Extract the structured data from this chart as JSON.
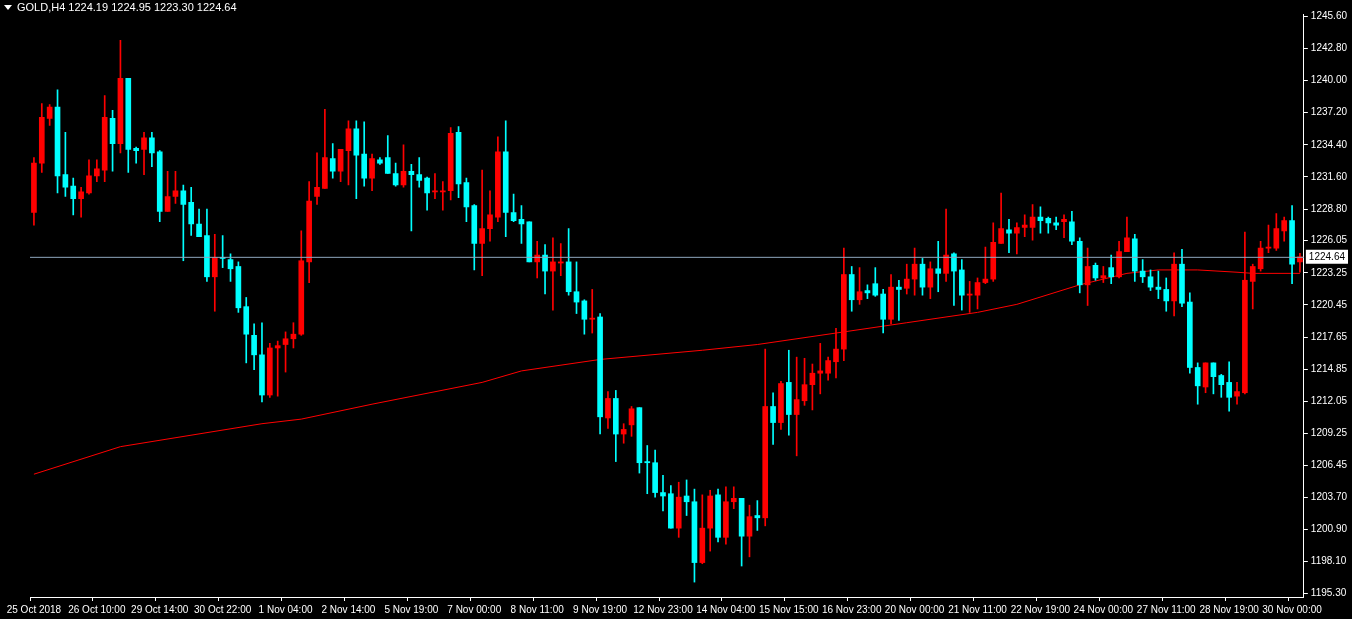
{
  "chart_data": {
    "type": "candlestick",
    "title": "GOLD,H4 1224.19 1224.95 1223.30 1224.64",
    "categories": [
      "25 Oct 2018",
      null,
      null,
      null,
      null,
      null,
      null,
      null,
      "26 Oct 10:00",
      null,
      null,
      null,
      null,
      null,
      null,
      null,
      "29 Oct 14:00",
      null,
      null,
      null,
      null,
      null,
      null,
      null,
      "30 Oct 22:00",
      null,
      null,
      null,
      null,
      null,
      null,
      null,
      "1 Nov 04:00",
      null,
      null,
      null,
      null,
      null,
      null,
      null,
      "2 Nov 14:00",
      null,
      null,
      null,
      null,
      null,
      null,
      null,
      "5 Nov 19:00",
      null,
      null,
      null,
      null,
      null,
      null,
      null,
      "7 Nov 00:00",
      null,
      null,
      null,
      null,
      null,
      null,
      null,
      "8 Nov 11:00",
      null,
      null,
      null,
      null,
      null,
      null,
      null,
      "9 Nov 19:00",
      null,
      null,
      null,
      null,
      null,
      null,
      null,
      "12 Nov 23:00",
      null,
      null,
      null,
      null,
      null,
      null,
      null,
      "14 Nov 04:00",
      null,
      null,
      null,
      null,
      null,
      null,
      null,
      "15 Nov 15:00",
      null,
      null,
      null,
      null,
      null,
      null,
      null,
      "16 Nov 23:00",
      null,
      null,
      null,
      null,
      null,
      null,
      null,
      "20 Nov 00:00",
      null,
      null,
      null,
      null,
      null,
      null,
      null,
      "21 Nov 11:00",
      null,
      null,
      null,
      null,
      null,
      null,
      null,
      "22 Nov 19:00",
      null,
      null,
      null,
      null,
      null,
      null,
      null,
      "24 Nov 00:00",
      null,
      null,
      null,
      null,
      null,
      null,
      null,
      "27 Nov 11:00",
      null,
      null,
      null,
      null,
      null,
      null,
      null,
      "28 Nov 19:00",
      null,
      null,
      null,
      null,
      null,
      null,
      null,
      "30 Nov 00:00",
      null
    ],
    "ohlc": [
      [
        1228.5,
        1233.3,
        1227.4,
        1232.8
      ],
      [
        1232.8,
        1238.0,
        1232.0,
        1236.8
      ],
      [
        1236.7,
        1237.9,
        1236.1,
        1237.7
      ],
      [
        1237.7,
        1239.2,
        1230.2,
        1231.7
      ],
      [
        1231.8,
        1235.5,
        1229.9,
        1230.7
      ],
      [
        1230.8,
        1231.5,
        1228.3,
        1229.7
      ],
      [
        1229.7,
        1230.7,
        1228.1,
        1230.3
      ],
      [
        1230.2,
        1233.1,
        1230.1,
        1231.7
      ],
      [
        1231.7,
        1233.1,
        1231.2,
        1232.3
      ],
      [
        1232.2,
        1238.7,
        1231.2,
        1236.8
      ],
      [
        1236.7,
        1237.4,
        1232.1,
        1234.5
      ],
      [
        1234.5,
        1243.5,
        1233.7,
        1240.2
      ],
      [
        1240.2,
        1240.2,
        1232.0,
        1234.0
      ],
      [
        1234.1,
        1234.2,
        1232.8,
        1233.9
      ],
      [
        1234.0,
        1235.5,
        1231.8,
        1235.0
      ],
      [
        1235.0,
        1235.5,
        1232.5,
        1233.7
      ],
      [
        1233.8,
        1233.9,
        1227.7,
        1228.6
      ],
      [
        1228.6,
        1232.1,
        1228.6,
        1229.9
      ],
      [
        1229.9,
        1232.1,
        1229.3,
        1230.4
      ],
      [
        1230.4,
        1230.9,
        1224.3,
        1229.2
      ],
      [
        1229.4,
        1230.7,
        1226.5,
        1227.5
      ],
      [
        1227.5,
        1228.8,
        1226.4,
        1226.4
      ],
      [
        1226.5,
        1228.8,
        1222.5,
        1222.9
      ],
      [
        1222.9,
        1226.6,
        1219.9,
        1224.6
      ],
      [
        1224.6,
        1226.5,
        1223.7,
        1224.5
      ],
      [
        1224.4,
        1224.9,
        1222.5,
        1223.6
      ],
      [
        1223.8,
        1224.2,
        1219.8,
        1220.2
      ],
      [
        1220.3,
        1221.1,
        1215.4,
        1217.9
      ],
      [
        1217.8,
        1218.8,
        1214.8,
        1216.1
      ],
      [
        1216.1,
        1218.9,
        1212.0,
        1212.6
      ],
      [
        1212.6,
        1217.1,
        1212.4,
        1216.7
      ],
      [
        1216.7,
        1217.3,
        1212.5,
        1216.9
      ],
      [
        1217.0,
        1218.1,
        1214.6,
        1217.5
      ],
      [
        1217.5,
        1218.9,
        1216.7,
        1217.9
      ],
      [
        1217.9,
        1226.9,
        1217.8,
        1224.3
      ],
      [
        1224.2,
        1231.2,
        1222.4,
        1229.5
      ],
      [
        1229.9,
        1233.7,
        1229.2,
        1230.7
      ],
      [
        1230.6,
        1237.5,
        1230.6,
        1233.3
      ],
      [
        1233.2,
        1234.5,
        1231.5,
        1232.1
      ],
      [
        1232.1,
        1234.0,
        1231.2,
        1234.0
      ],
      [
        1233.9,
        1236.5,
        1230.9,
        1235.8
      ],
      [
        1235.8,
        1236.5,
        1229.7,
        1233.5
      ],
      [
        1233.6,
        1236.4,
        1230.8,
        1231.5
      ],
      [
        1231.5,
        1233.6,
        1230.4,
        1233.2
      ],
      [
        1233.1,
        1233.3,
        1232.7,
        1232.8
      ],
      [
        1233.3,
        1235.2,
        1231.9,
        1231.9
      ],
      [
        1231.9,
        1232.8,
        1230.8,
        1230.9
      ],
      [
        1230.9,
        1234.4,
        1230.7,
        1232.1
      ],
      [
        1232.1,
        1232.7,
        1226.9,
        1231.8
      ],
      [
        1231.8,
        1233.3,
        1230.7,
        1231.3
      ],
      [
        1231.5,
        1231.6,
        1228.7,
        1230.2
      ],
      [
        1230.3,
        1231.9,
        1229.7,
        1230.4
      ],
      [
        1230.3,
        1231.2,
        1228.7,
        1230.4
      ],
      [
        1230.4,
        1235.9,
        1229.6,
        1235.4
      ],
      [
        1235.5,
        1236.0,
        1229.8,
        1231.0
      ],
      [
        1231.1,
        1231.5,
        1227.7,
        1229.0
      ],
      [
        1229.1,
        1229.2,
        1223.5,
        1225.8
      ],
      [
        1225.8,
        1232.2,
        1223.0,
        1227.1
      ],
      [
        1227.1,
        1230.4,
        1226.0,
        1228.3
      ],
      [
        1228.1,
        1235.1,
        1227.7,
        1233.8
      ],
      [
        1233.8,
        1236.5,
        1226.4,
        1228.5
      ],
      [
        1228.5,
        1230.1,
        1227.7,
        1227.8
      ],
      [
        1227.9,
        1229.1,
        1225.8,
        1227.5
      ],
      [
        1227.7,
        1227.7,
        1224.2,
        1224.2
      ],
      [
        1224.2,
        1226.0,
        1222.8,
        1224.8
      ],
      [
        1224.8,
        1225.7,
        1221.4,
        1223.4
      ],
      [
        1223.4,
        1226.3,
        1220.0,
        1224.2
      ],
      [
        1224.1,
        1225.8,
        1223.0,
        1224.2
      ],
      [
        1224.2,
        1227.1,
        1221.3,
        1221.6
      ],
      [
        1221.6,
        1224.2,
        1219.7,
        1220.7
      ],
      [
        1220.8,
        1220.9,
        1217.9,
        1219.2
      ],
      [
        1219.2,
        1221.8,
        1218.0,
        1219.3
      ],
      [
        1219.4,
        1219.7,
        1209.2,
        1210.7
      ],
      [
        1210.6,
        1212.9,
        1209.7,
        1212.3
      ],
      [
        1212.3,
        1213.0,
        1206.8,
        1209.2
      ],
      [
        1209.2,
        1210.1,
        1208.4,
        1209.6
      ],
      [
        1210.0,
        1211.6,
        1209.0,
        1211.4
      ],
      [
        1211.5,
        1211.5,
        1205.8,
        1206.7
      ],
      [
        1206.8,
        1208.2,
        1204.0,
        1206.7
      ],
      [
        1206.7,
        1207.8,
        1203.7,
        1204.1
      ],
      [
        1204.1,
        1205.6,
        1202.5,
        1203.8
      ],
      [
        1204.0,
        1204.7,
        1201.0,
        1201.0
      ],
      [
        1201.0,
        1205.0,
        1200.2,
        1203.7
      ],
      [
        1203.8,
        1205.2,
        1202.1,
        1203.3
      ],
      [
        1203.3,
        1204.4,
        1196.3,
        1198.0
      ],
      [
        1198.0,
        1203.9,
        1197.9,
        1201.0
      ],
      [
        1201.0,
        1204.3,
        1199.0,
        1203.8
      ],
      [
        1203.9,
        1204.4,
        1199.8,
        1200.2
      ],
      [
        1200.2,
        1204.6,
        1199.6,
        1203.3
      ],
      [
        1203.3,
        1204.6,
        1202.7,
        1203.6
      ],
      [
        1203.6,
        1203.6,
        1197.7,
        1200.3
      ],
      [
        1200.3,
        1203.0,
        1198.5,
        1202.0
      ],
      [
        1202.1,
        1203.4,
        1200.8,
        1201.9
      ],
      [
        1201.9,
        1216.6,
        1201.2,
        1211.6
      ],
      [
        1211.6,
        1212.8,
        1208.3,
        1210.2
      ],
      [
        1210.2,
        1213.8,
        1209.6,
        1213.6
      ],
      [
        1213.7,
        1216.5,
        1209.1,
        1210.9
      ],
      [
        1210.9,
        1215.9,
        1207.3,
        1212.2
      ],
      [
        1212.1,
        1215.8,
        1211.7,
        1213.5
      ],
      [
        1213.5,
        1215.3,
        1211.3,
        1214.5
      ],
      [
        1214.5,
        1217.1,
        1212.7,
        1214.7
      ],
      [
        1214.5,
        1215.9,
        1213.9,
        1215.6
      ],
      [
        1215.5,
        1218.4,
        1214.1,
        1216.6
      ],
      [
        1216.6,
        1225.4,
        1215.6,
        1223.1
      ],
      [
        1223.1,
        1223.8,
        1219.9,
        1220.9
      ],
      [
        1220.9,
        1223.7,
        1220.5,
        1221.6
      ],
      [
        1221.7,
        1222.2,
        1221.0,
        1221.5
      ],
      [
        1222.3,
        1223.7,
        1221.2,
        1221.3
      ],
      [
        1221.4,
        1221.8,
        1218.0,
        1219.2
      ],
      [
        1219.2,
        1223.1,
        1218.8,
        1222.0
      ],
      [
        1222.0,
        1222.6,
        1219.1,
        1221.8
      ],
      [
        1221.9,
        1224.0,
        1221.4,
        1222.7
      ],
      [
        1222.7,
        1225.4,
        1221.3,
        1224.0
      ],
      [
        1224.0,
        1224.5,
        1221.3,
        1222.0
      ],
      [
        1222.0,
        1224.2,
        1221.0,
        1223.6
      ],
      [
        1223.6,
        1226.0,
        1221.6,
        1223.2
      ],
      [
        1223.2,
        1228.8,
        1222.5,
        1224.8
      ],
      [
        1224.9,
        1225.0,
        1220.4,
        1223.4
      ],
      [
        1223.5,
        1224.4,
        1220.0,
        1221.3
      ],
      [
        1221.3,
        1222.5,
        1219.8,
        1221.4
      ],
      [
        1221.3,
        1222.8,
        1220.1,
        1222.4
      ],
      [
        1222.4,
        1225.5,
        1222.3,
        1222.7
      ],
      [
        1222.7,
        1227.6,
        1222.5,
        1225.9
      ],
      [
        1225.8,
        1230.2,
        1225.8,
        1227.1
      ],
      [
        1227.0,
        1227.9,
        1225.0,
        1226.7
      ],
      [
        1226.7,
        1227.6,
        1224.9,
        1227.2
      ],
      [
        1227.2,
        1228.3,
        1226.4,
        1227.4
      ],
      [
        1227.2,
        1229.2,
        1226.1,
        1228.1
      ],
      [
        1228.1,
        1229.0,
        1226.7,
        1227.8
      ],
      [
        1228.0,
        1228.1,
        1226.7,
        1227.6
      ],
      [
        1227.6,
        1228.1,
        1227.0,
        1227.4
      ],
      [
        1227.7,
        1228.3,
        1226.3,
        1227.9
      ],
      [
        1227.7,
        1228.6,
        1225.7,
        1226.0
      ],
      [
        1226.0,
        1226.3,
        1221.5,
        1222.2
      ],
      [
        1222.2,
        1225.4,
        1220.4,
        1223.8
      ],
      [
        1223.9,
        1224.1,
        1222.6,
        1222.8
      ],
      [
        1222.8,
        1223.8,
        1222.4,
        1223.0
      ],
      [
        1223.7,
        1224.8,
        1222.3,
        1222.9
      ],
      [
        1222.9,
        1226.0,
        1222.8,
        1225.1
      ],
      [
        1225.1,
        1228.1,
        1225.1,
        1226.3
      ],
      [
        1226.2,
        1226.6,
        1222.5,
        1223.4
      ],
      [
        1223.4,
        1224.4,
        1222.4,
        1222.9
      ],
      [
        1222.9,
        1223.5,
        1221.7,
        1222.0
      ],
      [
        1222.0,
        1223.4,
        1221.0,
        1221.8
      ],
      [
        1221.8,
        1222.8,
        1219.9,
        1220.8
      ],
      [
        1220.8,
        1225.0,
        1219.5,
        1224.0
      ],
      [
        1224.0,
        1225.3,
        1220.3,
        1220.6
      ],
      [
        1220.7,
        1221.5,
        1214.5,
        1215.0
      ],
      [
        1215.0,
        1215.4,
        1211.8,
        1213.4
      ],
      [
        1213.3,
        1215.4,
        1212.8,
        1215.4
      ],
      [
        1215.4,
        1215.4,
        1212.7,
        1214.2
      ],
      [
        1214.3,
        1214.4,
        1212.4,
        1213.5
      ],
      [
        1213.7,
        1215.5,
        1211.2,
        1212.4
      ],
      [
        1212.5,
        1213.7,
        1211.8,
        1212.9
      ],
      [
        1212.8,
        1226.8,
        1212.7,
        1222.6
      ],
      [
        1222.5,
        1224.0,
        1220.1,
        1223.8
      ],
      [
        1223.6,
        1226.0,
        1223.4,
        1225.4
      ],
      [
        1225.4,
        1227.4,
        1225.0,
        1225.5
      ],
      [
        1225.4,
        1228.4,
        1225.2,
        1227.1
      ],
      [
        1226.9,
        1228.1,
        1226.0,
        1227.8
      ],
      [
        1227.8,
        1229.1,
        1222.3,
        1224.0
      ],
      [
        1224.19,
        1224.95,
        1223.3,
        1224.64
      ]
    ],
    "colors": [
      "#ff0000",
      "#ff0000",
      "#ff0000",
      "#00ffff",
      "#00ffff",
      "#00ffff",
      "#ff0000",
      "#ff0000",
      "#ff0000",
      "#ff0000",
      "#00ffff",
      "#ff0000",
      "#00ffff",
      "#00ffff",
      "#ff0000",
      "#00ffff",
      "#00ffff",
      "#ff0000",
      "#ff0000",
      "#00ffff",
      "#00ffff",
      "#00ffff",
      "#00ffff",
      "#ff0000",
      "#00ffff",
      "#00ffff",
      "#00ffff",
      "#00ffff",
      "#00ffff",
      "#00ffff",
      "#ff0000",
      "#ff0000",
      "#ff0000",
      "#ff0000",
      "#ff0000",
      "#ff0000",
      "#ff0000",
      "#ff0000",
      "#00ffff",
      "#ff0000",
      "#ff0000",
      "#00ffff",
      "#00ffff",
      "#ff0000",
      "#00ffff",
      "#00ffff",
      "#00ffff",
      "#ff0000",
      "#00ffff",
      "#00ffff",
      "#00ffff",
      "#ff0000",
      "#ff0000",
      "#ff0000",
      "#00ffff",
      "#00ffff",
      "#00ffff",
      "#ff0000",
      "#ff0000",
      "#ff0000",
      "#00ffff",
      "#00ffff",
      "#00ffff",
      "#00ffff",
      "#ff0000",
      "#00ffff",
      "#ff0000",
      "#ff0000",
      "#00ffff",
      "#00ffff",
      "#00ffff",
      "#ff0000",
      "#00ffff",
      "#ff0000",
      "#00ffff",
      "#ff0000",
      "#ff0000",
      "#00ffff",
      "#00ffff",
      "#00ffff",
      "#00ffff",
      "#00ffff",
      "#ff0000",
      "#00ffff",
      "#00ffff",
      "#ff0000",
      "#ff0000",
      "#00ffff",
      "#ff0000",
      "#ff0000",
      "#00ffff",
      "#ff0000",
      "#00ffff",
      "#ff0000",
      "#00ffff",
      "#ff0000",
      "#00ffff",
      "#ff0000",
      "#ff0000",
      "#ff0000",
      "#ff0000",
      "#ff0000",
      "#ff0000",
      "#ff0000",
      "#00ffff",
      "#ff0000",
      "#00ffff",
      "#00ffff",
      "#00ffff",
      "#ff0000",
      "#00ffff",
      "#ff0000",
      "#ff0000",
      "#00ffff",
      "#ff0000",
      "#00ffff",
      "#ff0000",
      "#00ffff",
      "#00ffff",
      "#ff0000",
      "#ff0000",
      "#ff0000",
      "#ff0000",
      "#ff0000",
      "#00ffff",
      "#ff0000",
      "#ff0000",
      "#ff0000",
      "#00ffff",
      "#00ffff",
      "#00ffff",
      "#ff0000",
      "#00ffff",
      "#00ffff",
      "#ff0000",
      "#00ffff",
      "#ff0000",
      "#00ffff",
      "#ff0000",
      "#ff0000",
      "#00ffff",
      "#00ffff",
      "#00ffff",
      "#00ffff",
      "#00ffff",
      "#ff0000",
      "#00ffff",
      "#00ffff",
      "#00ffff",
      "#ff0000",
      "#00ffff",
      "#00ffff",
      "#00ffff",
      "#ff0000",
      "#ff0000",
      "#ff0000",
      "#ff0000",
      "#ff0000",
      "#ff0000",
      "#ff0000",
      "#00ffff",
      "#ff0000"
    ],
    "series": [
      {
        "type": "line",
        "color": "#ff0000",
        "values": [
          1205.7,
          null,
          null,
          null,
          null,
          null,
          null,
          null,
          null,
          null,
          null,
          1208.1,
          null,
          null,
          null,
          null,
          null,
          null,
          null,
          null,
          null,
          null,
          null,
          null,
          null,
          null,
          null,
          null,
          null,
          1210.1,
          null,
          null,
          null,
          null,
          1210.5,
          null,
          null,
          null,
          null,
          null,
          null,
          null,
          null,
          1211.8,
          null,
          null,
          null,
          null,
          null,
          null,
          null,
          null,
          null,
          null,
          null,
          null,
          null,
          1213.7,
          null,
          null,
          null,
          null,
          1214.7,
          null,
          null,
          null,
          null,
          null,
          null,
          null,
          null,
          null,
          1215.7,
          null,
          null,
          null,
          null,
          null,
          null,
          null,
          null,
          null,
          null,
          null,
          null,
          1216.5,
          null,
          null,
          null,
          null,
          null,
          null,
          1217.0,
          null,
          null,
          null,
          null,
          null,
          null,
          null,
          null,
          null,
          null,
          1218.1,
          null,
          null,
          null,
          null,
          null,
          null,
          null,
          1218.9,
          null,
          null,
          null,
          null,
          null,
          null,
          null,
          null,
          1219.8,
          null,
          null,
          null,
          null,
          1220.5,
          null,
          null,
          null,
          null,
          null,
          null,
          null,
          1222.2,
          null,
          null,
          null,
          null,
          null,
          1223.2,
          null,
          null,
          null,
          1223.5,
          null,
          null,
          null,
          null,
          1223.5,
          null,
          null,
          null,
          null,
          1223.3,
          null,
          1223.2,
          null,
          null,
          null,
          null,
          null,
          1223.2
        ]
      }
    ],
    "ylim": [
      1195.0,
      1245.8
    ],
    "yticks": [
      {
        "value": 1195.3,
        "label": "1195.30"
      },
      {
        "value": 1198.1,
        "label": "1198.10"
      },
      {
        "value": 1200.9,
        "label": "1200.90"
      },
      {
        "value": 1203.7,
        "label": "1203.70"
      },
      {
        "value": 1206.45,
        "label": "1206.45"
      },
      {
        "value": 1209.25,
        "label": "1209.25"
      },
      {
        "value": 1212.05,
        "label": "1212.05"
      },
      {
        "value": 1214.85,
        "label": "1214.85"
      },
      {
        "value": 1217.65,
        "label": "1217.65"
      },
      {
        "value": 1220.45,
        "label": "1220.45"
      },
      {
        "value": 1223.25,
        "label": "1223.25"
      },
      {
        "value": 1226.05,
        "label": "1226.05"
      },
      {
        "value": 1228.8,
        "label": "1228.80"
      },
      {
        "value": 1231.6,
        "label": "1231.60"
      },
      {
        "value": 1234.4,
        "label": "1234.40"
      },
      {
        "value": 1237.2,
        "label": "1237.20"
      },
      {
        "value": 1240,
        "label": "1240.00"
      },
      {
        "value": 1242.8,
        "label": "1242.80"
      },
      {
        "value": 1245.6,
        "label": "1245.60"
      }
    ],
    "ref_lines": [
      {
        "axis": "y",
        "value": 1224.64,
        "label": "1224.64",
        "color": "#8fa6bd"
      }
    ],
    "marker": "none"
  }
}
